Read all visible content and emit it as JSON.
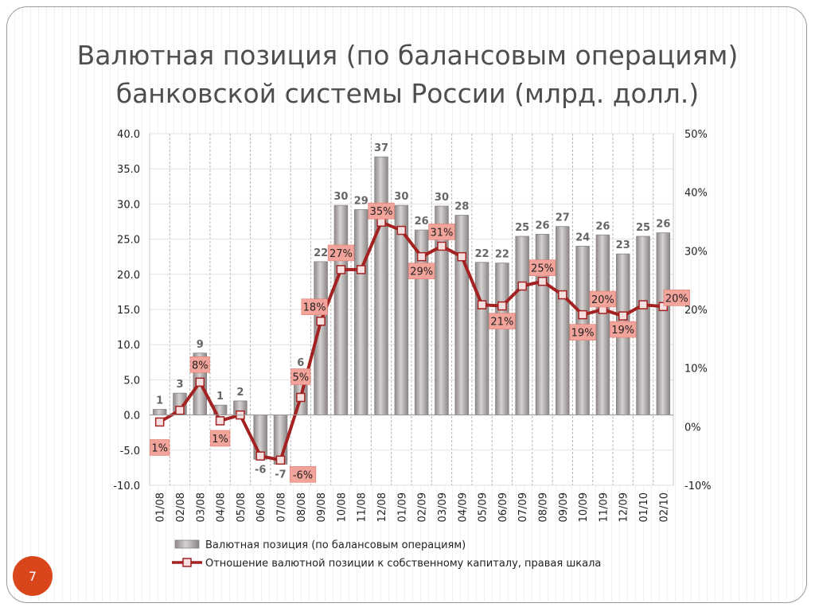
{
  "slide": {
    "title_line1": "Валютная позиция (по балансовым операциям)",
    "title_line2": "банковской системы России (млрд. долл.)",
    "page_number": "7"
  },
  "colors": {
    "bar_fill": "#b7b2b2",
    "bar_edge": "#8a8484",
    "line": "#a32121",
    "label_box": "#f2a39a"
  },
  "chart_data": {
    "type": "bar",
    "categories": [
      "01/08",
      "02/08",
      "03/08",
      "04/08",
      "05/08",
      "06/08",
      "07/08",
      "08/08",
      "09/08",
      "10/08",
      "11/08",
      "12/08",
      "01/09",
      "02/09",
      "03/09",
      "04/09",
      "05/09",
      "06/09",
      "07/09",
      "08/09",
      "09/09",
      "10/09",
      "11/09",
      "12/09",
      "01/10",
      "02/10"
    ],
    "ylim": [
      -10,
      40
    ],
    "yticks": [
      "-10.0",
      "-5.0",
      "0.0",
      "5.0",
      "10.0",
      "15.0",
      "20.0",
      "25.0",
      "30.0",
      "35.0",
      "40.0"
    ],
    "y2lim": [
      -10,
      50
    ],
    "y2ticks": [
      "-10%",
      "0%",
      "10%",
      "20%",
      "30%",
      "40%",
      "50%"
    ],
    "grid": true,
    "legend": "bottom",
    "series": [
      {
        "name": "Валютная позиция (по балансовым операциям)",
        "type": "bar",
        "axis": "left",
        "values": [
          0.8,
          3.1,
          8.8,
          1.4,
          2.0,
          -6.3,
          -7.0,
          6.2,
          21.8,
          29.8,
          29.2,
          36.7,
          29.8,
          26.3,
          29.7,
          28.4,
          21.7,
          21.6,
          25.4,
          25.7,
          26.8,
          24.0,
          25.6,
          22.9,
          25.4,
          25.9
        ],
        "labels": [
          "1",
          "3",
          "9",
          "1",
          "2",
          "-6",
          "-7",
          "6",
          "22",
          "30",
          "29",
          "37",
          "30",
          "26",
          "30",
          "28",
          "22",
          "22",
          "25",
          "26",
          "27",
          "24",
          "26",
          "23",
          "25",
          "26"
        ]
      },
      {
        "name": "Отношение валютной позиции к собственному капиталу, правая шкала",
        "type": "line",
        "axis": "right",
        "values": [
          0.8,
          2.8,
          7.6,
          1.0,
          2.0,
          -5.0,
          -5.7,
          5.0,
          18.0,
          26.8,
          26.8,
          34.9,
          33.5,
          29.0,
          30.8,
          29.0,
          20.8,
          20.6,
          24.0,
          24.8,
          22.5,
          19.1,
          20.0,
          18.9,
          20.8,
          20.5
        ],
        "labels": [
          "1%",
          "",
          "8%",
          "1%",
          "",
          "",
          "-6%",
          "5%",
          "18%",
          "27%",
          "",
          "35%",
          "",
          "29%",
          "31%",
          "",
          "",
          "21%",
          "",
          "25%",
          "",
          "19%",
          "20%",
          "19%",
          "",
          "20%"
        ]
      }
    ]
  }
}
